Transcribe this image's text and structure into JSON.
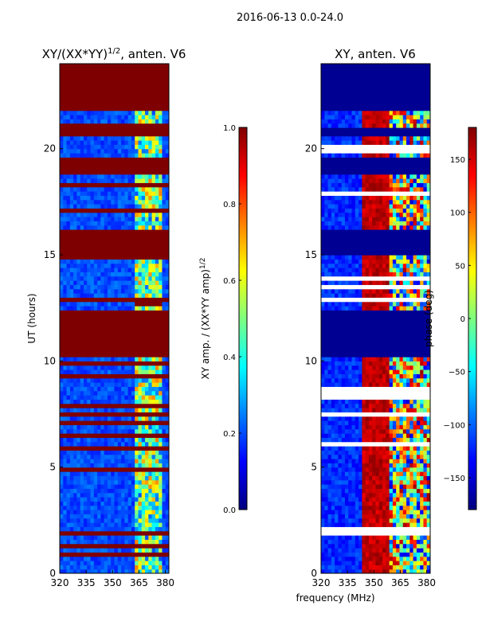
{
  "suptitle": "2016-06-13 0.0-24.0",
  "shared_xlabel": "frequency (MHz)",
  "colors": {
    "jet": [
      "#00007f",
      "#0000ff",
      "#007fff",
      "#00ffff",
      "#7fff7f",
      "#ffff00",
      "#ff7f00",
      "#ff0000",
      "#7f0000"
    ],
    "band": "#ffffff"
  },
  "chart_data": [
    {
      "id": "amp",
      "type": "heatmap",
      "title_main": "XY/(XX*YY)",
      "title_sup": "1/2",
      "title_rest": ", anten. V6",
      "xlabel": "",
      "ylabel": "UT (hours)",
      "xlim": [
        320,
        382
      ],
      "ylim": [
        0,
        24
      ],
      "xticks": [
        320,
        335,
        350,
        365,
        380
      ],
      "xtick_labels": [
        "320",
        "335",
        "350",
        "365",
        "380"
      ],
      "yticks": [
        0,
        5,
        10,
        15,
        20
      ],
      "ytick_labels": [
        "0",
        "5",
        "10",
        "15",
        "20"
      ],
      "colorbar": {
        "label_main": "XY amp. / (XX*YY amp)",
        "label_sup": "1/2",
        "range": [
          0.0,
          1.0
        ],
        "ticks": [
          0.0,
          0.2,
          0.4,
          0.6,
          0.8,
          1.0
        ],
        "tick_labels": [
          "0.0",
          "0.2",
          "0.4",
          "0.6",
          "0.8",
          "1.0"
        ]
      },
      "flagged_hours": [
        [
          0.0,
          0.1
        ],
        [
          10.3,
          12.5
        ],
        [
          15.1,
          16.2
        ],
        [
          18.8,
          19.6
        ],
        [
          20.6,
          21.0
        ],
        [
          21.8,
          24.0
        ]
      ],
      "rfi_hours": [
        [
          12.6,
          12.8
        ]
      ],
      "rfi_freq_mhz": [
        363,
        378
      ],
      "background_value": 0.15
    },
    {
      "id": "phase",
      "type": "heatmap",
      "title_main": "XY, anten. V6",
      "xlabel": "frequency (MHz)",
      "ylabel": "",
      "xlim": [
        320,
        382
      ],
      "ylim": [
        0,
        24
      ],
      "xticks": [
        320,
        335,
        350,
        365,
        380
      ],
      "xtick_labels": [
        "320",
        "335",
        "350",
        "365",
        "380"
      ],
      "yticks": [
        0,
        5,
        10,
        15,
        20
      ],
      "ytick_labels": [
        "0",
        "5",
        "10",
        "15",
        "20"
      ],
      "colorbar": {
        "label_main": "phase (deg)",
        "range": [
          -180,
          180
        ],
        "ticks": [
          -150,
          -100,
          -50,
          0,
          50,
          100,
          150
        ],
        "tick_labels": [
          "−150",
          "−100",
          "−50",
          "0",
          "50",
          "100",
          "150"
        ]
      },
      "flagged_hours": [
        [
          10.3,
          12.5
        ],
        [
          15.1,
          16.2
        ],
        [
          18.8,
          19.6
        ],
        [
          20.6,
          21.0
        ],
        [
          21.8,
          24.0
        ]
      ],
      "red_band_freq_mhz": [
        343,
        358
      ],
      "mixed_band_freq_mhz": [
        358,
        382
      ],
      "background_value": -140
    }
  ]
}
